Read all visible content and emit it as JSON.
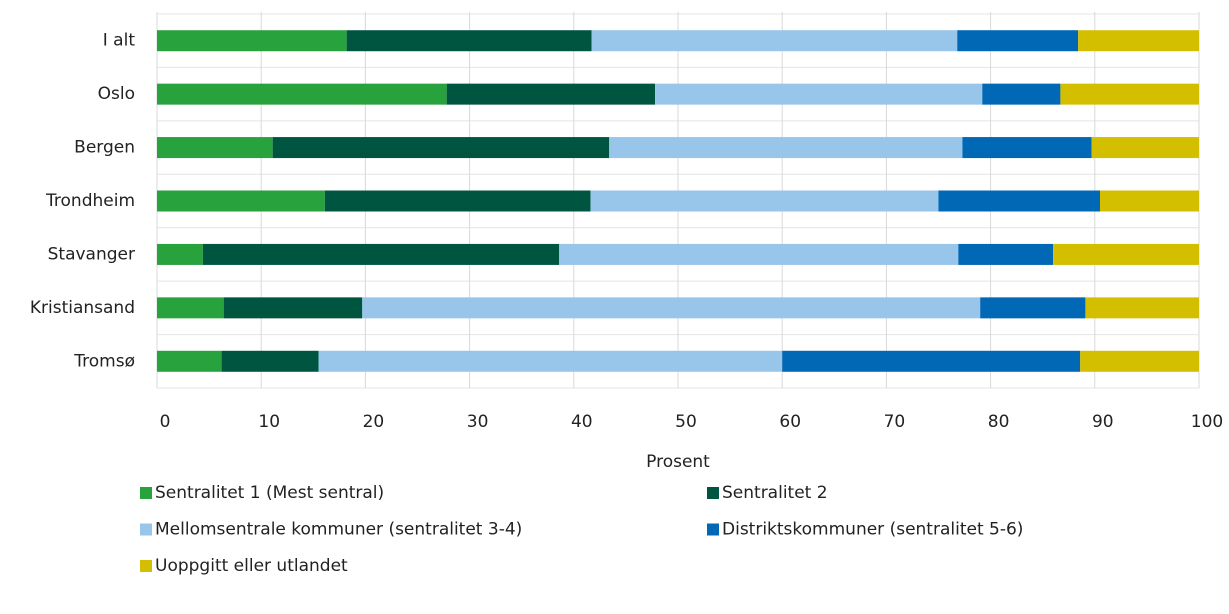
{
  "chart_data": {
    "type": "stacked-barh",
    "categories": [
      "I alt",
      "Oslo",
      "Bergen",
      "Trondheim",
      "Stavanger",
      "Kristiansand",
      "Tromsø"
    ],
    "series": [
      {
        "name": "Sentralitet 1 (Mest sentral)",
        "color": "#27a23c",
        "values": [
          18.2,
          27.8,
          11.1,
          16.1,
          4.4,
          6.4,
          6.2
        ]
      },
      {
        "name": "Sentralitet 2",
        "color": "#005541",
        "values": [
          23.5,
          20.0,
          32.3,
          25.5,
          34.2,
          13.3,
          9.3
        ]
      },
      {
        "name": "Mellomsentrale kommuner (sentralitet 3-4)",
        "color": "#98c6ea",
        "values": [
          35.1,
          31.4,
          33.9,
          33.4,
          38.3,
          59.3,
          44.5
        ]
      },
      {
        "name": "Distriktskommuner (sentralitet 5-6)",
        "color": "#0068b4",
        "values": [
          11.6,
          7.5,
          12.4,
          15.5,
          9.1,
          10.1,
          28.6
        ]
      },
      {
        "name": "Uoppgitt eller utlandet",
        "color": "#d4be00",
        "values": [
          11.6,
          13.3,
          10.3,
          9.5,
          14.0,
          10.9,
          11.4
        ]
      }
    ],
    "x_label": "Prosent",
    "xlim": [
      0,
      100
    ],
    "xticks": [
      0,
      10,
      20,
      30,
      40,
      50,
      60,
      70,
      80,
      90,
      100
    ],
    "grid": true
  }
}
